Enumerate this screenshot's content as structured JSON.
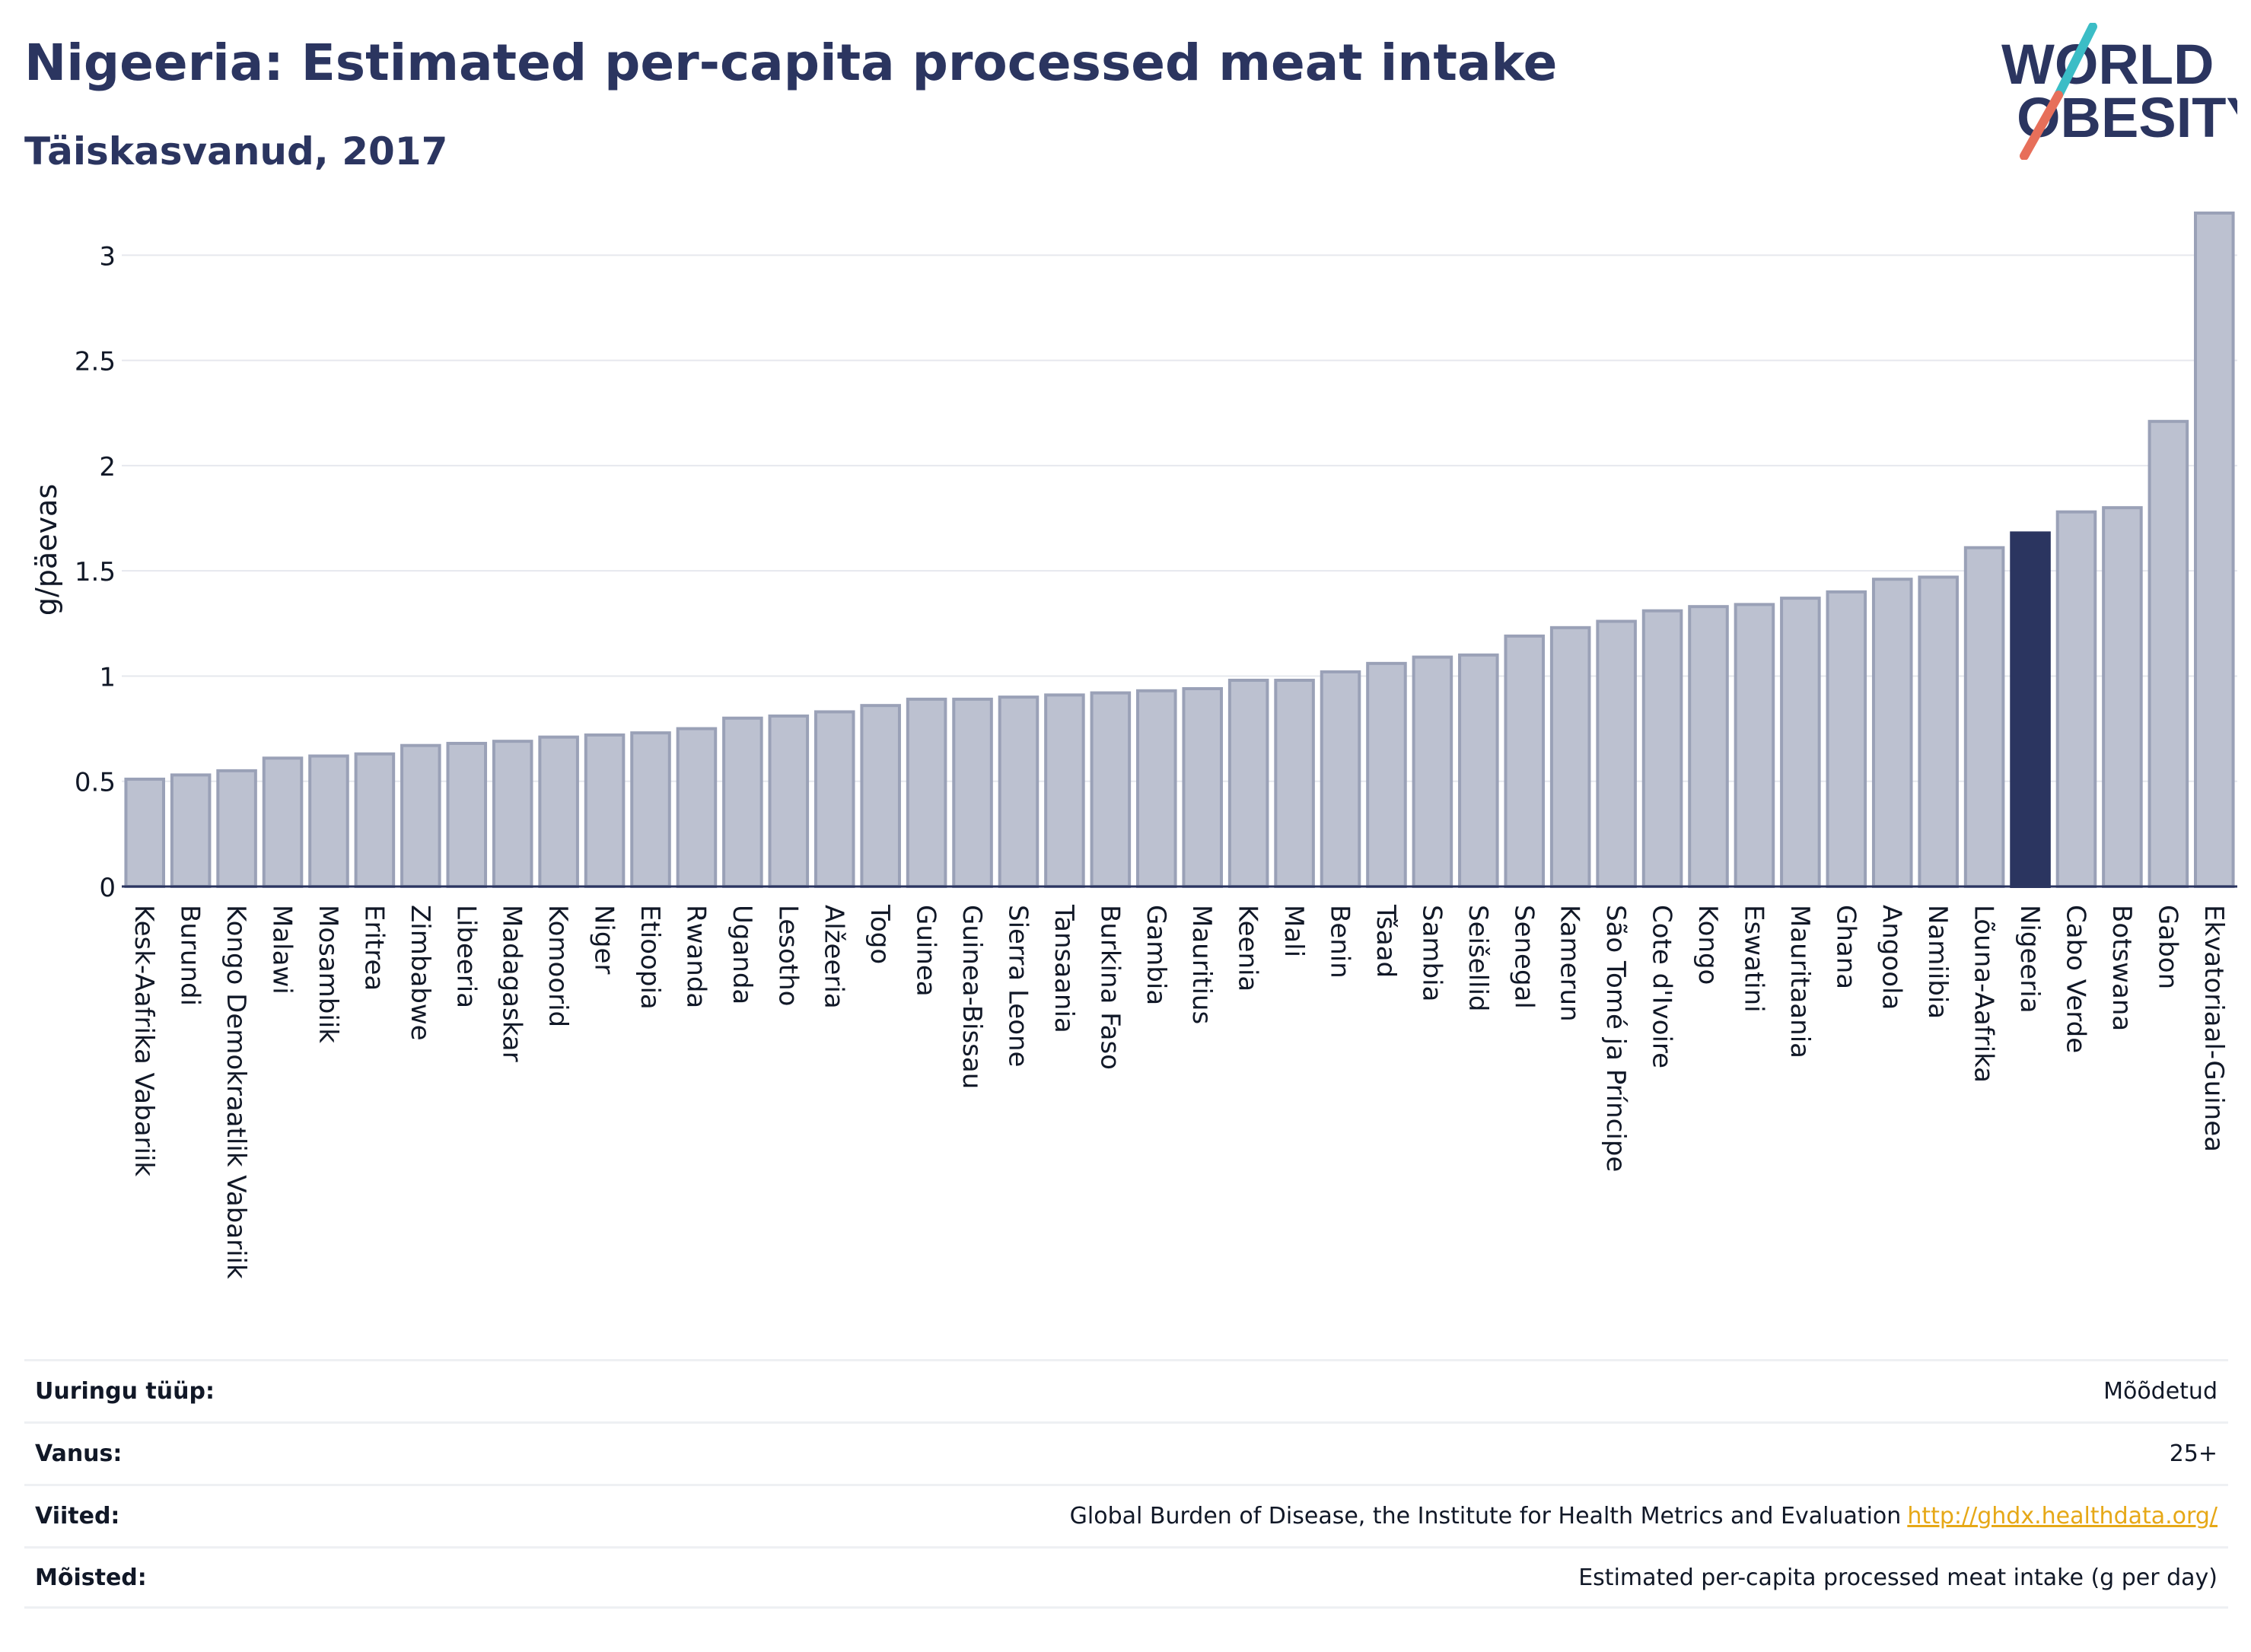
{
  "header": {
    "title": "Nigeeria: Estimated per-capita processed meat intake",
    "subtitle": "Täiskasvanud, 2017"
  },
  "logo": {
    "line1": "WORLD",
    "line2": "OBESITY",
    "colors": [
      "#2b3560",
      "#3bbdc6",
      "#e76f5a"
    ]
  },
  "colors": {
    "bar": "#bcc1d0",
    "bar_border": "#9aa1b7",
    "highlight": "#2b3560",
    "grid": "#e6e8ee",
    "axis": "#2b3560"
  },
  "chart_data": {
    "type": "bar",
    "ylabel": "g/päevas",
    "ylim": [
      0,
      3.2
    ],
    "yticks": [
      "0",
      "0.5",
      "1",
      "1.5",
      "2",
      "2.5",
      "3"
    ],
    "grid": true,
    "highlight": "Nigeeria",
    "categories": [
      "Kesk-Aafrika Vabariik",
      "Burundi",
      "Kongo Demokraatlik Vabariik",
      "Malawi",
      "Mosambiik",
      "Eritrea",
      "Zimbabwe",
      "Libeeria",
      "Madagaskar",
      "Komoorid",
      "Niger",
      "Etioopia",
      "Rwanda",
      "Uganda",
      "Lesotho",
      "Alžeeria",
      "Togo",
      "Guinea",
      "Guinea-Bissau",
      "Sierra Leone",
      "Tansaania",
      "Burkina Faso",
      "Gambia",
      "Mauritius",
      "Keenia",
      "Mali",
      "Benin",
      "Tšaad",
      "Sambia",
      "Seišellid",
      "Senegal",
      "Kamerun",
      "São Tomé ja Príncipe",
      "Cote d'Ivoire",
      "Kongo",
      "Eswatini",
      "Mauritaania",
      "Ghana",
      "Angoola",
      "Namiibia",
      "Lõuna-Aafrika",
      "Nigeeria",
      "Cabo Verde",
      "Botswana",
      "Gabon",
      "Ekvatoriaal-Guinea"
    ],
    "values": [
      0.51,
      0.53,
      0.55,
      0.61,
      0.62,
      0.63,
      0.67,
      0.68,
      0.69,
      0.71,
      0.72,
      0.73,
      0.75,
      0.8,
      0.81,
      0.83,
      0.86,
      0.89,
      0.89,
      0.9,
      0.91,
      0.92,
      0.93,
      0.94,
      0.98,
      0.98,
      1.02,
      1.06,
      1.09,
      1.1,
      1.19,
      1.23,
      1.26,
      1.31,
      1.33,
      1.34,
      1.37,
      1.4,
      1.46,
      1.47,
      1.61,
      1.68,
      1.78,
      1.8,
      2.21,
      3.2
    ]
  },
  "info": {
    "rows": [
      {
        "key": "Uuringu tüüp:",
        "value": "Mõõdetud"
      },
      {
        "key": "Vanus:",
        "value": "25+"
      },
      {
        "key": "Viited:",
        "value": "Global Burden of Disease, the Institute for Health Metrics and Evaluation",
        "link": "http://ghdx.healthdata.org/"
      },
      {
        "key": "Mõisted:",
        "value": "Estimated per-capita processed meat intake (g per day)"
      }
    ]
  }
}
